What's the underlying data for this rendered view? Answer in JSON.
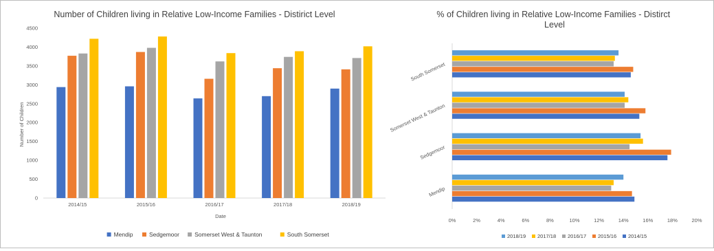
{
  "chart_data": [
    {
      "type": "bar",
      "title": "Number of Children living in Relative Low-Income Families - Distirict Level",
      "xlabel": "Date",
      "ylabel": "Number of Children",
      "categories": [
        "2014/15",
        "2015/16",
        "2016/17",
        "2017/18",
        "2018/19"
      ],
      "ylim": [
        0,
        4500
      ],
      "yticks": [
        "0",
        "500",
        "1000",
        "1500",
        "2000",
        "2500",
        "3000",
        "3500",
        "4000",
        "4500"
      ],
      "grid": false,
      "legend": "bottom",
      "series": [
        {
          "name": "Mendip",
          "color": "#4472C4",
          "values": [
            2940,
            2960,
            2640,
            2700,
            2900
          ]
        },
        {
          "name": "Sedgemoor",
          "color": "#ED7D31",
          "values": [
            3770,
            3870,
            3160,
            3440,
            3410
          ]
        },
        {
          "name": "Somerset West & Taunton",
          "color": "#A5A5A5",
          "values": [
            3830,
            3980,
            3620,
            3740,
            3710
          ]
        },
        {
          "name": "South Somerset",
          "color": "#FFC000",
          "values": [
            4220,
            4280,
            3840,
            3890,
            4020
          ]
        }
      ]
    },
    {
      "type": "bar",
      "orientation": "horizontal",
      "title": "% of Children living in Relative Low-Income Families - Distirct Level",
      "categories": [
        "Mendip",
        "Sedgemoor",
        "Somerset West & Taunton",
        "South Somerset"
      ],
      "xlim": [
        0,
        20
      ],
      "xticks": [
        "0%",
        "2%",
        "4%",
        "6%",
        "8%",
        "10%",
        "12%",
        "14%",
        "16%",
        "18%",
        "20%"
      ],
      "grid": false,
      "legend": "bottom",
      "series": [
        {
          "name": "2014/15",
          "color": "#4472C4",
          "values": [
            14.9,
            17.6,
            15.3,
            14.6
          ]
        },
        {
          "name": "2015/16",
          "color": "#ED7D31",
          "values": [
            14.7,
            17.9,
            15.8,
            14.8
          ]
        },
        {
          "name": "2016/17",
          "color": "#A5A5A5",
          "values": [
            13.0,
            14.5,
            14.1,
            13.2
          ]
        },
        {
          "name": "2017/18",
          "color": "#FFC000",
          "values": [
            13.2,
            15.6,
            14.4,
            13.3
          ]
        },
        {
          "name": "2018/19",
          "color": "#5B9BD5",
          "values": [
            14.0,
            15.4,
            14.1,
            13.6
          ]
        }
      ],
      "legend_order": [
        "2018/19",
        "2017/18",
        "2016/17",
        "2015/16",
        "2014/15"
      ]
    }
  ]
}
